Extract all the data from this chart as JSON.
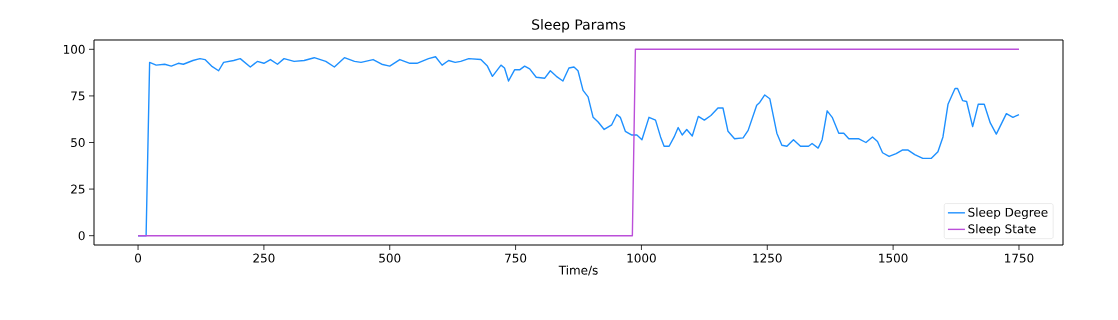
{
  "chart_data": {
    "type": "line",
    "title": "Sleep Params",
    "xlabel": "Time/s",
    "xlim": [
      -87.5,
      1837.5
    ],
    "ylim": [
      -5,
      105
    ],
    "xticks": [
      0,
      250,
      500,
      750,
      1000,
      1250,
      1500,
      1750
    ],
    "yticks": [
      0,
      25,
      50,
      75,
      100
    ],
    "legend": "bottom right",
    "grid": false,
    "marker": "none",
    "line_style": "solid",
    "series": [
      {
        "name": "Sleep Degree",
        "color": "#1e90ff",
        "x": [
          0,
          16,
          23,
          36,
          53,
          66,
          80,
          90,
          109,
          123,
          133,
          146,
          160,
          170,
          190,
          203,
          223,
          237,
          250,
          263,
          277,
          290,
          310,
          330,
          350,
          373,
          390,
          410,
          430,
          443,
          467,
          484,
          500,
          520,
          540,
          554,
          577,
          591,
          604,
          617,
          630,
          641,
          657,
          681,
          694,
          704,
          721,
          728,
          736,
          748,
          758,
          768,
          778,
          791,
          808,
          819,
          831,
          844,
          856,
          866,
          874,
          884,
          894,
          904,
          914,
          926,
          941,
          951,
          958,
          968,
          981,
          991,
          1001,
          1015,
          1028,
          1038,
          1045,
          1055,
          1065,
          1073,
          1081,
          1090,
          1101,
          1113,
          1125,
          1138,
          1152,
          1162,
          1172,
          1185,
          1202,
          1212,
          1229,
          1235,
          1245,
          1255,
          1269,
          1279,
          1289,
          1302,
          1316,
          1332,
          1339,
          1351,
          1359,
          1369,
          1379,
          1392,
          1402,
          1412,
          1432,
          1446,
          1459,
          1469,
          1479,
          1492,
          1506,
          1519,
          1529,
          1543,
          1559,
          1576,
          1589,
          1599,
          1609,
          1623,
          1628,
          1638,
          1646,
          1658,
          1669,
          1681,
          1693,
          1705,
          1725,
          1738,
          1750
        ],
        "values": [
          0,
          0,
          93,
          91.5,
          92,
          91,
          92.5,
          92,
          94,
          95,
          94.5,
          91,
          88.5,
          93,
          94,
          95,
          90.5,
          93.5,
          92.5,
          94.5,
          92,
          95,
          93.5,
          94,
          95.5,
          93.5,
          90.5,
          95.5,
          93.5,
          93,
          94.5,
          92,
          91,
          94.5,
          92.5,
          92.5,
          95,
          96,
          91.5,
          94,
          93,
          93.5,
          95,
          94.5,
          91,
          85.5,
          91.5,
          90,
          83,
          89,
          89,
          91,
          89.5,
          85,
          84.5,
          88.5,
          85.5,
          83,
          90,
          90.5,
          88.5,
          78,
          74.5,
          63.5,
          61,
          57,
          59.5,
          65,
          63.5,
          56,
          54,
          54,
          51.5,
          63.5,
          62,
          53,
          48,
          48,
          53,
          58,
          54,
          57,
          53.5,
          64,
          62,
          64.5,
          68.5,
          68.5,
          56,
          52,
          52.5,
          56.5,
          70,
          71.5,
          75.5,
          73.5,
          55,
          48.5,
          48,
          51.5,
          48,
          48,
          49.5,
          47,
          51.5,
          67,
          63.5,
          55,
          55,
          52,
          52,
          50,
          53,
          50.5,
          44.5,
          42.5,
          44,
          46,
          46,
          43.5,
          41.5,
          41.5,
          45,
          53,
          70.5,
          79,
          79,
          72.5,
          72,
          58.5,
          70.5,
          70.5,
          60.5,
          54.5,
          65.5,
          63.5,
          65
        ]
      },
      {
        "name": "Sleep State",
        "color": "#bb4fd9",
        "x": [
          0,
          982,
          988,
          1750
        ],
        "values": [
          0,
          0,
          100,
          100
        ]
      }
    ]
  }
}
